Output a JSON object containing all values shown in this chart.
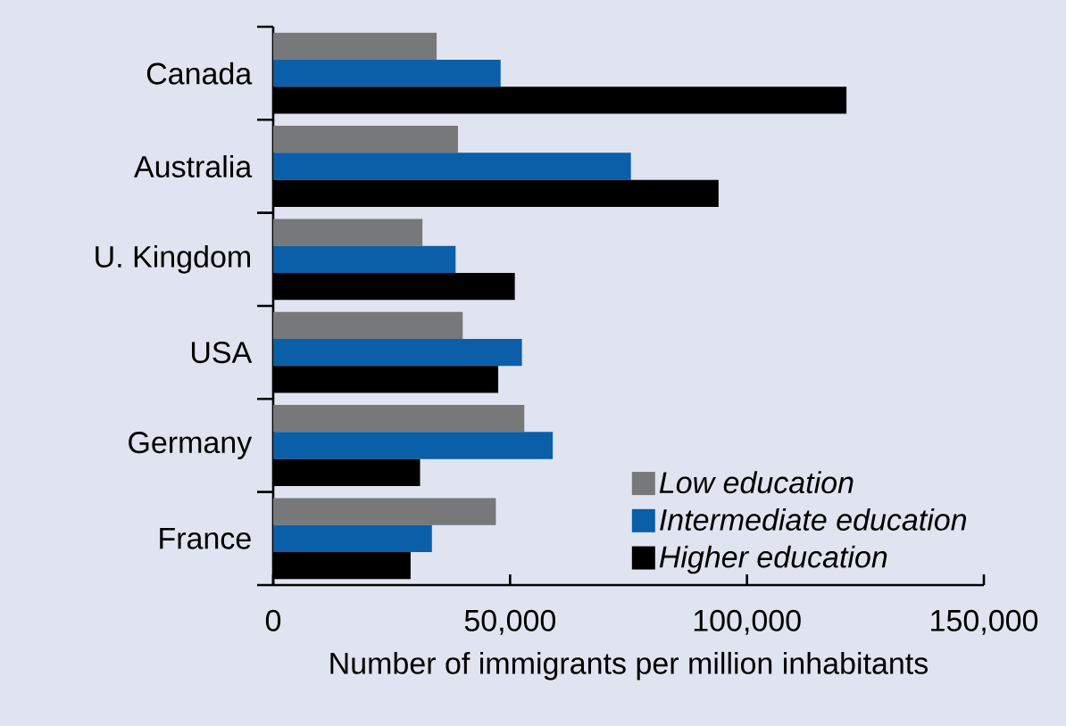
{
  "chart_data": {
    "type": "bar",
    "orientation": "horizontal",
    "xlabel": "Number of immigrants per million inhabitants",
    "categories": [
      "Canada",
      "Australia",
      "U. Kingdom",
      "USA",
      "Germany",
      "France"
    ],
    "series": [
      {
        "name": "Low education",
        "color": "#76787a",
        "values": [
          34500,
          39000,
          31500,
          40000,
          53000,
          47000
        ]
      },
      {
        "name": "Intermediate education",
        "color": "#0b5ea8",
        "values": [
          48000,
          75500,
          38500,
          52500,
          59000,
          33500
        ]
      },
      {
        "name": "Higher education",
        "color": "#000000",
        "values": [
          121000,
          94000,
          51000,
          47500,
          31000,
          29000
        ]
      }
    ],
    "xlim": [
      0,
      150000
    ],
    "xticks": [
      0,
      {
        "value": 50000,
        "label": "50,000"
      },
      {
        "value": 100000,
        "label": "100,000"
      },
      {
        "value": 150000,
        "label": "150,000"
      }
    ],
    "legend": "bottom right"
  }
}
